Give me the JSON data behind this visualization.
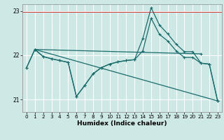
{
  "xlabel": "Humidex (Indice chaleur)",
  "xlim": [
    -0.5,
    23.5
  ],
  "ylim": [
    20.72,
    23.15
  ],
  "yticks": [
    21,
    22,
    23
  ],
  "xticks": [
    0,
    1,
    2,
    3,
    4,
    5,
    6,
    7,
    8,
    9,
    10,
    11,
    12,
    13,
    14,
    15,
    16,
    17,
    18,
    19,
    20,
    21,
    22,
    23
  ],
  "background_color": "#cde8e5",
  "grid_color": "#ffffff",
  "line_color": "#1a6b6b",
  "line1_x": [
    0,
    1,
    2,
    3,
    4,
    5,
    6,
    7,
    8,
    9,
    10,
    11,
    12,
    13,
    14,
    15,
    16,
    17,
    18,
    19,
    20,
    21,
    22,
    23
  ],
  "line1_y": [
    21.72,
    22.13,
    21.97,
    21.92,
    21.88,
    21.84,
    21.07,
    21.32,
    21.58,
    21.72,
    21.8,
    21.85,
    21.88,
    21.9,
    22.1,
    22.83,
    22.47,
    22.32,
    22.1,
    21.95,
    21.95,
    21.82,
    21.8,
    20.97
  ],
  "line2_x": [
    0,
    1,
    2,
    3,
    4,
    5,
    6,
    7,
    8,
    9,
    10,
    11,
    12,
    13,
    14,
    15,
    16,
    17,
    18,
    19,
    20,
    21,
    22,
    23
  ],
  "line2_y": [
    21.72,
    22.13,
    21.97,
    21.92,
    21.88,
    21.84,
    21.07,
    21.32,
    21.58,
    21.72,
    21.8,
    21.85,
    21.88,
    21.9,
    22.38,
    23.07,
    22.68,
    22.48,
    22.25,
    22.08,
    22.08,
    21.82,
    21.8,
    20.97
  ],
  "line3_x": [
    1,
    23
  ],
  "line3_y": [
    22.13,
    20.97
  ],
  "line4_x": [
    1,
    21
  ],
  "line4_y": [
    22.13,
    22.03
  ]
}
